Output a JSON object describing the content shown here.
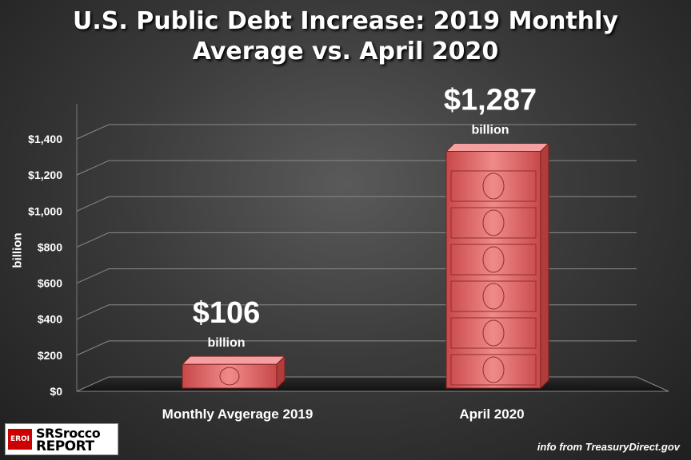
{
  "title": {
    "line1": "U.S. Public Debt Increase:  2019 Monthly",
    "line2": "Average vs. April 2020"
  },
  "chart_data": {
    "type": "bar",
    "title": "U.S. Public Debt Increase:  2019 Monthly Average vs. April 2020",
    "xlabel": "",
    "ylabel": "billion",
    "categories": [
      "Monthly Avgerage 2019",
      "April 2020"
    ],
    "values": [
      106,
      1287
    ],
    "data_labels": [
      "$106",
      "$1,287"
    ],
    "data_label_unit": "billion",
    "ylim": [
      0,
      1400
    ],
    "y_ticks": [
      {
        "value": 0,
        "label": "$0"
      },
      {
        "value": 200,
        "label": "$200"
      },
      {
        "value": 400,
        "label": "$400"
      },
      {
        "value": 600,
        "label": "$600"
      },
      {
        "value": 800,
        "label": "$800"
      },
      {
        "value": 1000,
        "label": "$1,000"
      },
      {
        "value": 1200,
        "label": "$1,200"
      },
      {
        "value": 1400,
        "label": "$1,400"
      }
    ],
    "grid": true,
    "bar_color": "#e87a7a",
    "legend": "none"
  },
  "logo": {
    "badge": "EROI",
    "line1": "SRSrocco",
    "line2": "REPORT"
  },
  "source": "info from TreasuryDirect.gov"
}
